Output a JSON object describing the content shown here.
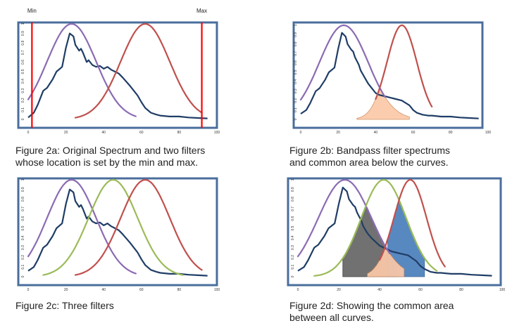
{
  "chart_data": [
    {
      "type": "line",
      "panel": "2a",
      "caption": "Figure 2a: Original Spectrum and two filters\nwhose location is set by the min and max.",
      "xlim": [
        0,
        100
      ],
      "ylim": [
        0,
        1
      ],
      "x_ticks": [
        "0",
        "20",
        "40",
        "60",
        "80",
        "100"
      ],
      "y_ticks": [
        "0",
        "0.1",
        "0.2",
        "0.3",
        "0.4",
        "0.5",
        "0.6",
        "0.7",
        "0.8",
        "0.9",
        "1"
      ],
      "markers": [
        {
          "label": "Min",
          "x": 2,
          "color": "#ff0000"
        },
        {
          "label": "Max",
          "x": 92,
          "color": "#ff0000"
        }
      ],
      "series": [
        {
          "role": "spectrum",
          "color": "#1f3d66",
          "x": [
            0,
            3,
            5,
            8,
            10,
            13,
            15,
            18,
            20,
            22,
            24,
            25,
            27,
            28,
            29,
            31,
            32,
            34,
            36,
            38,
            40,
            42,
            44,
            46,
            48,
            50,
            54,
            58,
            60,
            62,
            65,
            68,
            70,
            75,
            80,
            85,
            90,
            95
          ],
          "y": [
            0.02,
            0.07,
            0.15,
            0.3,
            0.33,
            0.42,
            0.5,
            0.55,
            0.75,
            0.9,
            0.87,
            0.78,
            0.72,
            0.74,
            0.7,
            0.6,
            0.62,
            0.57,
            0.55,
            0.56,
            0.53,
            0.55,
            0.52,
            0.5,
            0.48,
            0.44,
            0.35,
            0.25,
            0.18,
            0.12,
            0.07,
            0.05,
            0.04,
            0.03,
            0.03,
            0.02,
            0.015,
            0.01
          ]
        },
        {
          "role": "filter",
          "color": "#8b6bb3",
          "mu": 23,
          "sigma": 13,
          "x_range": [
            0,
            57
          ]
        },
        {
          "role": "filter",
          "color": "#c0504d",
          "mu": 62,
          "sigma": 13,
          "x_range": [
            25,
            92
          ]
        }
      ],
      "fills": []
    },
    {
      "type": "line",
      "panel": "2b",
      "caption": "Figure 2b: Bandpass filter spectrums\nand common area below the curves.",
      "xlim": [
        0,
        100
      ],
      "ylim": [
        0,
        1
      ],
      "x_ticks": [
        "0",
        "20",
        "40",
        "60",
        "80",
        "100"
      ],
      "y_ticks": [
        "0",
        "0.1",
        "0.2",
        "0.3",
        "0.4",
        "0.5",
        "0.6",
        "0.7",
        "0.8",
        "0.9",
        "1"
      ],
      "markers": [],
      "series": [
        {
          "role": "spectrum",
          "color": "#1f3d66",
          "x": [
            0,
            3,
            5,
            8,
            10,
            13,
            15,
            18,
            20,
            22,
            24,
            25,
            27,
            28,
            29,
            31,
            32,
            34,
            36,
            38,
            40,
            42,
            44,
            46,
            48,
            50,
            54,
            58,
            60,
            62,
            65,
            68,
            70,
            75,
            80,
            85,
            90,
            95
          ],
          "y": [
            0.06,
            0.1,
            0.17,
            0.3,
            0.33,
            0.42,
            0.5,
            0.55,
            0.75,
            0.92,
            0.88,
            0.8,
            0.74,
            0.72,
            0.66,
            0.58,
            0.52,
            0.45,
            0.38,
            0.33,
            0.28,
            0.26,
            0.25,
            0.24,
            0.23,
            0.22,
            0.2,
            0.15,
            0.1,
            0.07,
            0.05,
            0.04,
            0.04,
            0.03,
            0.03,
            0.02,
            0.015,
            0.01
          ]
        },
        {
          "role": "filter",
          "color": "#8b6bb3",
          "mu": 23,
          "sigma": 13,
          "x_range": [
            0,
            45
          ]
        },
        {
          "role": "filter",
          "color": "#c0504d",
          "mu": 54,
          "sigma": 8,
          "x_range": [
            40,
            70
          ]
        }
      ],
      "fills": [
        {
          "type": "min",
          "of": [
            1,
            2
          ],
          "color": "#fbc9a8",
          "stroke": "#d08a5c",
          "x_range": [
            30,
            58
          ]
        }
      ]
    },
    {
      "type": "line",
      "panel": "2c",
      "caption": "Figure 2c: Three filters",
      "xlim": [
        0,
        100
      ],
      "ylim": [
        0,
        1
      ],
      "x_ticks": [
        "0",
        "20",
        "40",
        "60",
        "80",
        "100"
      ],
      "y_ticks": [
        "0",
        "0.1",
        "0.2",
        "0.3",
        "0.4",
        "0.5",
        "0.6",
        "0.7",
        "0.8",
        "0.9",
        "1"
      ],
      "markers": [],
      "series": [
        {
          "role": "spectrum",
          "color": "#1f3d66",
          "x": [
            0,
            3,
            5,
            8,
            10,
            13,
            15,
            18,
            20,
            22,
            24,
            25,
            27,
            28,
            29,
            31,
            32,
            34,
            36,
            38,
            40,
            42,
            44,
            46,
            48,
            50,
            54,
            58,
            60,
            62,
            65,
            68,
            70,
            75,
            80,
            85,
            90,
            95
          ],
          "y": [
            0.06,
            0.1,
            0.17,
            0.3,
            0.33,
            0.42,
            0.5,
            0.55,
            0.75,
            0.9,
            0.87,
            0.78,
            0.72,
            0.74,
            0.7,
            0.6,
            0.62,
            0.57,
            0.55,
            0.56,
            0.53,
            0.55,
            0.52,
            0.5,
            0.48,
            0.44,
            0.35,
            0.25,
            0.18,
            0.12,
            0.07,
            0.05,
            0.04,
            0.03,
            0.03,
            0.02,
            0.015,
            0.01
          ]
        },
        {
          "role": "filter",
          "color": "#8b6bb3",
          "mu": 23,
          "sigma": 13,
          "x_range": [
            0,
            57
          ]
        },
        {
          "role": "filter",
          "color": "#9bbb59",
          "mu": 45,
          "sigma": 13,
          "x_range": [
            8,
            82
          ]
        },
        {
          "role": "filter",
          "color": "#c0504d",
          "mu": 62,
          "sigma": 13,
          "x_range": [
            25,
            92
          ]
        }
      ],
      "fills": []
    },
    {
      "type": "line",
      "panel": "2d",
      "caption": "Figure 2d: Showing the common area\nbetween all curves.",
      "xlim": [
        0,
        100
      ],
      "ylim": [
        0,
        1
      ],
      "x_ticks": [
        "0",
        "20",
        "40",
        "60",
        "80",
        "100"
      ],
      "y_ticks": [
        "0",
        "0.1",
        "0.2",
        "0.3",
        "0.4",
        "0.5",
        "0.6",
        "0.7",
        "0.8",
        "0.9",
        "1"
      ],
      "markers": [],
      "series": [
        {
          "role": "spectrum",
          "color": "#1f3d66",
          "x": [
            0,
            3,
            5,
            8,
            10,
            13,
            15,
            18,
            20,
            22,
            24,
            25,
            27,
            28,
            29,
            31,
            32,
            34,
            36,
            38,
            40,
            42,
            44,
            46,
            48,
            50,
            54,
            58,
            60,
            62,
            65,
            68,
            70,
            75,
            80,
            85,
            90,
            95
          ],
          "y": [
            0.06,
            0.1,
            0.17,
            0.3,
            0.33,
            0.42,
            0.5,
            0.55,
            0.75,
            0.92,
            0.88,
            0.8,
            0.74,
            0.72,
            0.66,
            0.58,
            0.52,
            0.45,
            0.4,
            0.36,
            0.32,
            0.3,
            0.28,
            0.26,
            0.25,
            0.24,
            0.22,
            0.16,
            0.11,
            0.08,
            0.05,
            0.04,
            0.04,
            0.03,
            0.03,
            0.02,
            0.015,
            0.01
          ]
        },
        {
          "role": "filter",
          "color": "#8b6bb3",
          "mu": 23,
          "sigma": 13,
          "x_range": [
            0,
            45
          ]
        },
        {
          "role": "filter",
          "color": "#9bbb59",
          "mu": 42,
          "sigma": 11,
          "x_range": [
            8,
            68
          ]
        },
        {
          "role": "filter",
          "color": "#c0504d",
          "mu": 55,
          "sigma": 8,
          "x_range": [
            40,
            72
          ]
        }
      ],
      "fills": [
        {
          "type": "min",
          "of": [
            1,
            2
          ],
          "color": "#666666",
          "stroke": "#333333",
          "x_range": [
            22,
            48
          ]
        },
        {
          "type": "min",
          "of": [
            2,
            3
          ],
          "color": "#4a7ebb",
          "stroke": "#2f5f93",
          "x_range": [
            44,
            62
          ]
        },
        {
          "type": "min",
          "of": [
            1,
            3
          ],
          "color": "#fbc9a8",
          "stroke": "#d08a5c",
          "x_range": [
            34,
            52
          ]
        }
      ]
    }
  ]
}
